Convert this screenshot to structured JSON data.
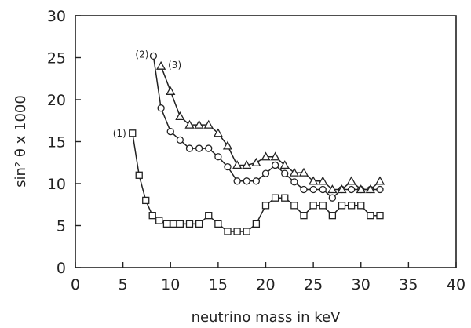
{
  "chart_data": {
    "type": "line",
    "title": "",
    "xlabel": "neutrino mass in keV",
    "ylabel": "sin² θ x 1000",
    "xlim": [
      0,
      40
    ],
    "ylim": [
      0,
      30
    ],
    "x_ticks": [
      0,
      5,
      10,
      15,
      20,
      25,
      30,
      35,
      40
    ],
    "y_ticks": [
      0,
      5,
      10,
      15,
      20,
      25,
      30
    ],
    "grid": false,
    "legend": "none",
    "series": [
      {
        "name": "(1)",
        "marker": "square",
        "x": [
          6,
          6.7,
          7.4,
          8.1,
          8.8,
          9.6,
          10.3,
          11,
          12,
          13,
          14,
          15,
          16,
          17,
          18,
          19,
          20,
          21,
          22,
          23,
          24,
          25,
          26,
          27,
          28,
          29,
          30,
          31,
          32
        ],
        "y": [
          16,
          11,
          8,
          6.2,
          5.6,
          5.2,
          5.2,
          5.2,
          5.2,
          5.2,
          6.2,
          5.2,
          4.3,
          4.3,
          4.3,
          5.2,
          7.4,
          8.3,
          8.3,
          7.4,
          6.2,
          7.4,
          7.4,
          6.2,
          7.4,
          7.4,
          7.4,
          6.2,
          6.2
        ]
      },
      {
        "name": "(2)",
        "marker": "circle",
        "x": [
          8.2,
          9,
          10,
          11,
          12,
          13,
          14,
          15,
          16,
          17,
          18,
          19,
          20,
          21,
          22,
          23,
          24,
          25,
          26,
          27,
          28,
          29,
          30,
          31,
          32
        ],
        "y": [
          25.2,
          19,
          16.2,
          15.2,
          14.2,
          14.2,
          14.2,
          13.2,
          12,
          10.3,
          10.3,
          10.3,
          11.2,
          12.2,
          11.2,
          10.2,
          9.3,
          9.3,
          9.3,
          8.3,
          9.3,
          9.3,
          9.3,
          9.3,
          9.3
        ]
      },
      {
        "name": "(3)",
        "marker": "triangle",
        "x": [
          9,
          10,
          11,
          12,
          13,
          14,
          15,
          16,
          17,
          18,
          19,
          20,
          21,
          22,
          23,
          24,
          25,
          26,
          27,
          28,
          29,
          30,
          31,
          32
        ],
        "y": [
          24,
          21,
          18,
          17,
          17,
          17,
          16,
          14.5,
          12.2,
          12.2,
          12.5,
          13.2,
          13.2,
          12.2,
          11.3,
          11.3,
          10.3,
          10.3,
          9.3,
          9.3,
          10.3,
          9.3,
          9.3,
          10.3
        ]
      }
    ]
  }
}
